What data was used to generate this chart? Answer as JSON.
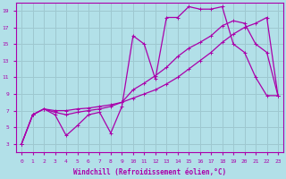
{
  "bg_color": "#b2e0e8",
  "grid_color": "#9ec8d0",
  "line_color": "#aa00aa",
  "xlabel": "Windchill (Refroidissement éolien,°C)",
  "xlim": [
    -0.5,
    23.5
  ],
  "ylim": [
    2,
    20
  ],
  "yticks": [
    3,
    5,
    7,
    9,
    11,
    13,
    15,
    17,
    19
  ],
  "xticks": [
    0,
    1,
    2,
    3,
    4,
    5,
    6,
    7,
    8,
    9,
    10,
    11,
    12,
    13,
    14,
    15,
    16,
    17,
    18,
    19,
    20,
    21,
    22,
    23
  ],
  "series1_x": [
    0,
    1,
    2,
    3,
    4,
    5,
    6,
    7,
    8,
    9,
    10,
    11,
    12,
    13,
    14,
    15,
    16,
    17,
    18,
    19,
    20,
    21,
    22,
    23
  ],
  "series1_y": [
    3.0,
    6.5,
    7.2,
    6.5,
    4.0,
    5.2,
    6.5,
    6.8,
    4.3,
    7.5,
    16.0,
    15.0,
    10.8,
    18.2,
    18.2,
    19.5,
    19.2,
    19.2,
    19.5,
    15.0,
    14.0,
    11.0,
    8.8,
    8.8
  ],
  "series2_x": [
    0,
    1,
    2,
    3,
    4,
    5,
    6,
    7,
    8,
    9,
    10,
    11,
    12,
    13,
    14,
    15,
    16,
    17,
    18,
    19,
    20,
    21,
    22,
    23
  ],
  "series2_y": [
    3.0,
    6.5,
    7.2,
    6.8,
    6.5,
    6.8,
    7.0,
    7.2,
    7.5,
    8.0,
    9.5,
    10.3,
    11.2,
    12.2,
    13.5,
    14.5,
    15.2,
    16.0,
    17.2,
    17.8,
    17.5,
    15.0,
    14.0,
    8.8
  ],
  "series3_x": [
    0,
    1,
    2,
    3,
    4,
    5,
    6,
    7,
    8,
    9,
    10,
    11,
    12,
    13,
    14,
    15,
    16,
    17,
    18,
    19,
    20,
    21,
    22,
    23
  ],
  "series3_y": [
    3.0,
    6.5,
    7.2,
    7.0,
    7.0,
    7.2,
    7.3,
    7.5,
    7.7,
    8.0,
    8.5,
    9.0,
    9.5,
    10.2,
    11.0,
    12.0,
    13.0,
    14.0,
    15.2,
    16.2,
    17.0,
    17.5,
    18.2,
    8.8
  ]
}
